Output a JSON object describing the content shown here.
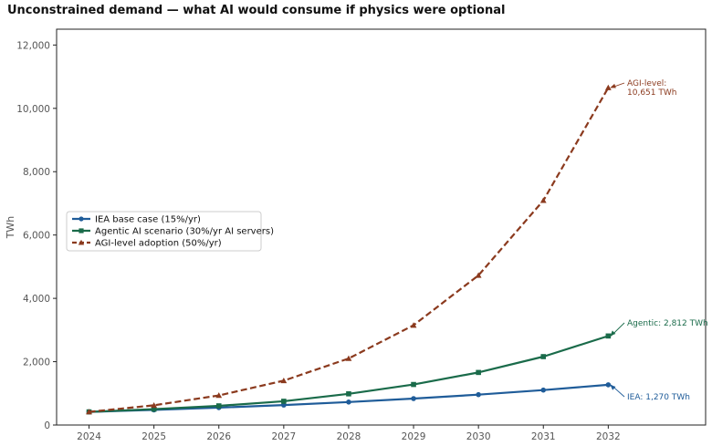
{
  "chart_data": {
    "type": "line",
    "title": "Unconstrained demand — what AI would consume if physics were optional",
    "xlabel": "",
    "ylabel": "TWh",
    "x": [
      2024,
      2025,
      2026,
      2027,
      2028,
      2029,
      2030,
      2031,
      2032
    ],
    "xlim": [
      2023.5,
      2033.5
    ],
    "ylim": [
      0,
      12500
    ],
    "yticks": [
      0,
      2000,
      4000,
      6000,
      8000,
      10000,
      12000
    ],
    "ytick_labels": [
      "0",
      "2,000",
      "4,000",
      "6,000",
      "8,000",
      "10,000",
      "12,000"
    ],
    "grid": false,
    "legend_position": "center-left",
    "series": [
      {
        "name": "IEA base case (15%/yr)",
        "color": "#1f5c99",
        "marker": "circle",
        "dash": "solid",
        "values": [
          415,
          477,
          549,
          631,
          726,
          835,
          960,
          1104,
          1270
        ]
      },
      {
        "name": "Agentic AI scenario (30%/yr AI servers)",
        "color": "#1a6b4a",
        "marker": "square",
        "dash": "solid",
        "values": [
          415,
          500,
          605,
          750,
          985,
          1280,
          1660,
          2160,
          2812
        ]
      },
      {
        "name": "AGI-level adoption (50%/yr)",
        "color": "#8b3a1e",
        "marker": "triangle",
        "dash": "dashed",
        "values": [
          415,
          623,
          934,
          1401,
          2101,
          3151,
          4727,
          7090,
          10651
        ]
      }
    ],
    "annotations": [
      {
        "series": 2,
        "text_lines": [
          "AGI-level:",
          "10,651 TWh"
        ],
        "color": "#8b3a1e"
      },
      {
        "series": 1,
        "text_lines": [
          "Agentic: 2,812 TWh"
        ],
        "color": "#1a6b4a"
      },
      {
        "series": 0,
        "text_lines": [
          "IEA: 1,270 TWh"
        ],
        "color": "#1f5c99"
      }
    ]
  }
}
